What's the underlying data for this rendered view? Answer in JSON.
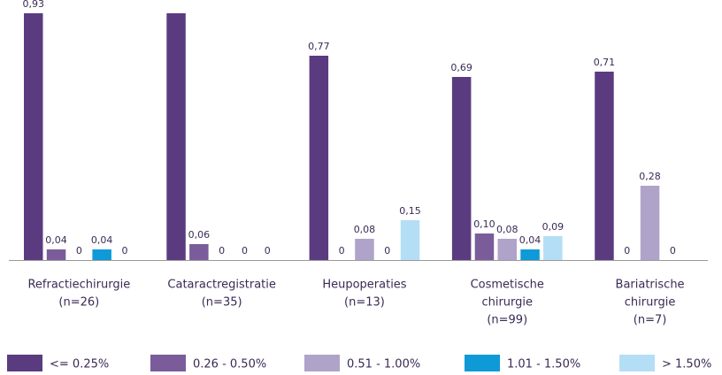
{
  "chart_data": {
    "type": "bar",
    "categories": [
      [
        "Refractiechirurgie",
        "(n=26)"
      ],
      [
        "Cataractregistratie",
        "(n=35)"
      ],
      [
        "Heupoperaties",
        "(n=13)"
      ],
      [
        "Cosmetische",
        "chirurgie",
        "(n=99)"
      ],
      [
        "Bariatrische",
        "chirurgie",
        "(n=7)"
      ]
    ],
    "series": [
      {
        "name": "<= 0.25%",
        "color": "#5b3b80",
        "values": [
          0.93,
          0.97,
          0.77,
          0.69,
          0.71
        ],
        "value_labels": [
          "0,93",
          null,
          "0,77",
          "0,69",
          "0,71"
        ]
      },
      {
        "name": "0.26 - 0.50%",
        "color": "#7a5c9b",
        "values": [
          0.04,
          0.06,
          0,
          0.1,
          0
        ],
        "value_labels": [
          "0,04",
          "0,06",
          "0",
          "0,10",
          "0"
        ]
      },
      {
        "name": "0.51 - 1.00%",
        "color": "#b0a3c9",
        "values": [
          0,
          0,
          0.08,
          0.08,
          0.28
        ],
        "value_labels": [
          "0",
          "0",
          "0,08",
          "0,08",
          "0,28"
        ]
      },
      {
        "name": "1.01 - 1.50%",
        "color": "#0d9ad7",
        "values": [
          0.04,
          0,
          0,
          0.04,
          0
        ],
        "value_labels": [
          "0,04",
          "0",
          "0",
          "0,04",
          "0"
        ]
      },
      {
        "name": "> 1.50%",
        "color": "#b4def5",
        "values": [
          0,
          0,
          0.15,
          0.09,
          null
        ],
        "value_labels": [
          "0",
          "0",
          "0,15",
          "0,09",
          null
        ]
      }
    ],
    "ylim": [
      0,
      0.93
    ],
    "legend": "bottom"
  }
}
